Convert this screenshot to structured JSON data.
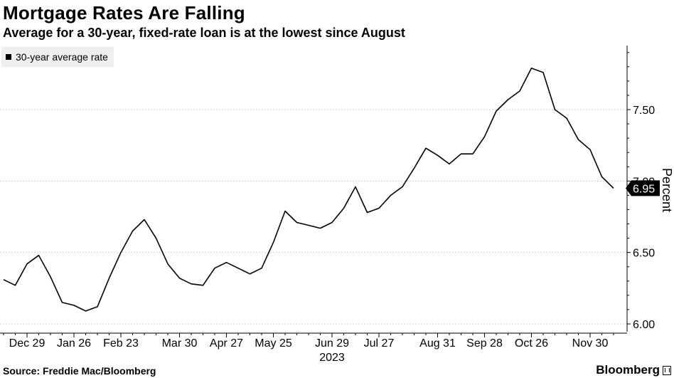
{
  "header": {
    "title": "Mortgage Rates Are Falling",
    "subtitle": "Average for a 30-year, fixed-rate loan is at the lowest since August"
  },
  "footer": {
    "source": "Source: Freddie Mac/Bloomberg",
    "brand": "Bloomberg"
  },
  "colors": {
    "line": "#000000",
    "grid": "#d0d0d0",
    "legend_bg": "#efefef"
  },
  "chart_data": {
    "type": "line",
    "title": "Mortgage Rates Are Falling",
    "subtitle": "Average for a 30-year, fixed-rate loan is at the lowest since August",
    "ylabel": "Percent",
    "year_label": "2023",
    "ylim": [
      5.97,
      8.0
    ],
    "y_ticks": [
      6.0,
      6.5,
      7.0,
      7.5
    ],
    "y_tick_labels": [
      "6.00",
      "6.50",
      "7.00",
      "7.50"
    ],
    "y_axis_position": "right",
    "grid": "horizontal",
    "legend_placement": "top-left",
    "x_ticks": [
      {
        "label": "Dec 29",
        "index": 2
      },
      {
        "label": "Jan 26",
        "index": 6
      },
      {
        "label": "Feb 23",
        "index": 10
      },
      {
        "label": "Mar 30",
        "index": 15
      },
      {
        "label": "Apr 27",
        "index": 19
      },
      {
        "label": "May 25",
        "index": 23
      },
      {
        "label": "Jun 29",
        "index": 28
      },
      {
        "label": "Jul 27",
        "index": 32
      },
      {
        "label": "Aug 31",
        "index": 37
      },
      {
        "label": "Sep 28",
        "index": 41
      },
      {
        "label": "Oct 26",
        "index": 45
      },
      {
        "label": "Nov 30",
        "index": 50
      }
    ],
    "last_value_label": "6.95",
    "series": [
      {
        "name": "30-year average rate",
        "values": [
          6.31,
          6.27,
          6.42,
          6.48,
          6.33,
          6.15,
          6.13,
          6.09,
          6.12,
          6.32,
          6.5,
          6.65,
          6.73,
          6.6,
          6.42,
          6.32,
          6.28,
          6.27,
          6.39,
          6.43,
          6.39,
          6.35,
          6.39,
          6.57,
          6.79,
          6.71,
          6.69,
          6.67,
          6.71,
          6.81,
          6.96,
          6.78,
          6.81,
          6.9,
          6.96,
          7.09,
          7.23,
          7.18,
          7.12,
          7.19,
          7.19,
          7.31,
          7.49,
          7.57,
          7.63,
          7.79,
          7.76,
          7.5,
          7.44,
          7.29,
          7.22,
          7.03,
          6.95
        ]
      }
    ]
  }
}
